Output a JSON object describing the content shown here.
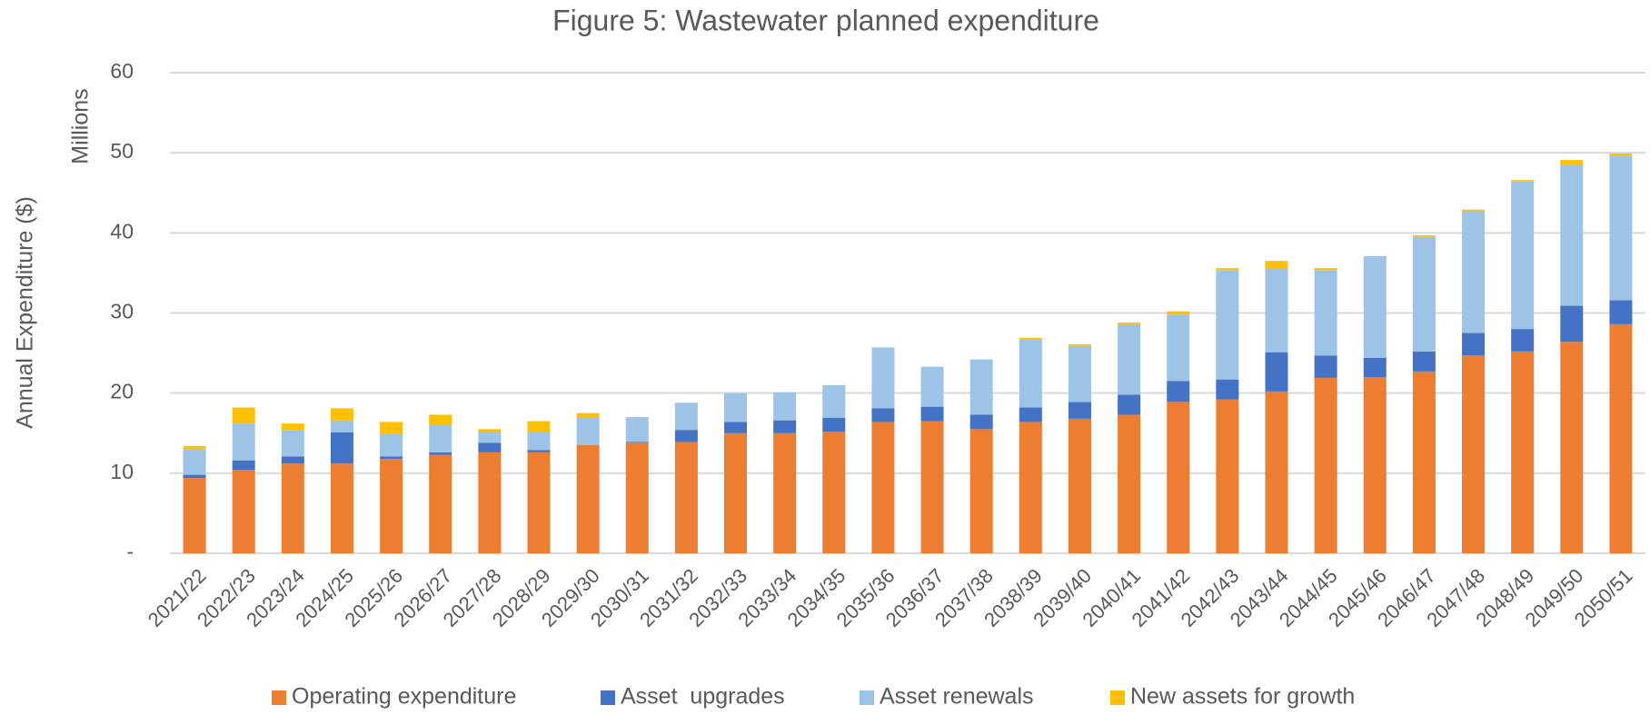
{
  "chart_data": {
    "type": "stacked_bar",
    "title": "Figure 5: Wastewater planned expenditure",
    "y_label": "Annual Expenditure ($)",
    "y_unit_label": "Millions",
    "categories": [
      "2021/22",
      "2022/23",
      "2023/24",
      "2024/25",
      "2025/26",
      "2026/27",
      "2027/28",
      "2028/29",
      "2029/30",
      "2030/31",
      "2031/32",
      "2032/33",
      "2033/34",
      "2034/35",
      "2035/36",
      "2036/37",
      "2037/38",
      "2038/39",
      "2039/40",
      "2040/41",
      "2041/42",
      "2042/43",
      "2043/44",
      "2044/45",
      "2045/46",
      "2046/47",
      "2047/48",
      "2048/49",
      "2049/50",
      "2050/51"
    ],
    "series": [
      {
        "name": "Operating expenditure",
        "color": "#ed7d31",
        "values": [
          9.4,
          10.4,
          11.2,
          11.2,
          11.8,
          12.3,
          12.6,
          12.6,
          13.5,
          13.8,
          13.9,
          15.0,
          15.0,
          15.2,
          16.4,
          16.5,
          15.5,
          16.4,
          16.8,
          17.3,
          18.9,
          19.2,
          20.2,
          21.9,
          22.0,
          22.7,
          24.7,
          25.2,
          26.4,
          28.6
        ]
      },
      {
        "name": "Asset  upgrades",
        "color": "#4472c4",
        "values": [
          0.4,
          1.2,
          0.9,
          3.9,
          0.3,
          0.3,
          1.2,
          0.3,
          0,
          0.1,
          1.5,
          1.4,
          1.6,
          1.7,
          1.7,
          1.8,
          1.8,
          1.8,
          2.1,
          2.5,
          2.6,
          2.5,
          4.9,
          2.8,
          2.4,
          2.5,
          2.8,
          2.8,
          4.5,
          3.0
        ]
      },
      {
        "name": "Asset renewals",
        "color": "#9dc3e6",
        "values": [
          3.2,
          4.6,
          3.3,
          1.5,
          2.8,
          3.5,
          1.4,
          2.3,
          3.4,
          3.0,
          3.4,
          3.6,
          3.5,
          4.1,
          7.6,
          5.0,
          6.9,
          8.5,
          7.0,
          8.8,
          8.3,
          13.6,
          10.4,
          10.6,
          12.7,
          14.3,
          15.2,
          18.4,
          17.6,
          18.0
        ]
      },
      {
        "name": "New assets for growth",
        "color": "#ffc000",
        "values": [
          0.4,
          2.0,
          0.8,
          1.5,
          1.5,
          1.2,
          0.3,
          1.3,
          0.6,
          0.1,
          0,
          0,
          0,
          0,
          0,
          0,
          0,
          0.2,
          0.2,
          0.2,
          0.4,
          0.3,
          1.0,
          0.3,
          0,
          0.2,
          0.2,
          0.2,
          0.6,
          0.3
        ]
      }
    ],
    "ylim": [
      0,
      60
    ],
    "yticks": [
      {
        "value": 0,
        "label": "-"
      },
      10,
      20,
      30,
      40,
      50,
      60
    ],
    "grid": true,
    "legend": "bottom"
  }
}
